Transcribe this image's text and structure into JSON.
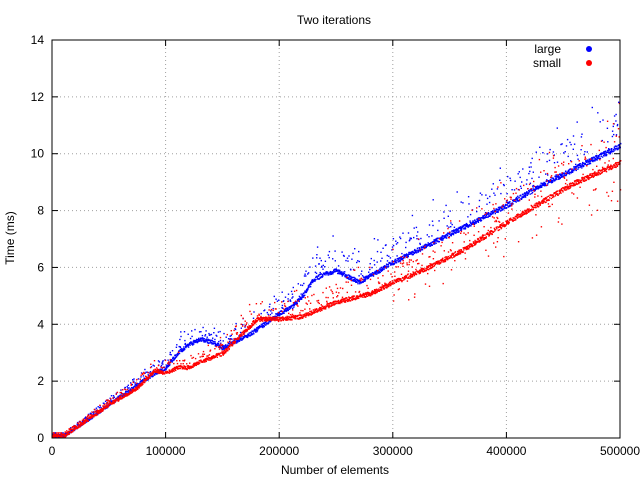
{
  "chart_data": {
    "type": "scatter",
    "title": "Two iterations",
    "xlabel": "Number of elements",
    "ylabel": "Time (ms)",
    "xlim": [
      0,
      500000
    ],
    "ylim": [
      0,
      14
    ],
    "xticks": [
      "0",
      "100000",
      "200000",
      "300000",
      "400000",
      "500000"
    ],
    "yticks": [
      "0",
      "2",
      "4",
      "6",
      "8",
      "10",
      "12",
      "14"
    ],
    "grid": true,
    "legend_position": "top-right",
    "series": [
      {
        "name": "large",
        "color": "#0000ff",
        "x": [
          10000,
          25000,
          50000,
          75000,
          90000,
          100000,
          110000,
          120000,
          130000,
          140000,
          150000,
          175000,
          200000,
          210000,
          220000,
          230000,
          240000,
          250000,
          260000,
          270000,
          300000,
          330000,
          360000,
          400000,
          430000,
          460000,
          500000
        ],
        "y": [
          0.1,
          0.5,
          1.2,
          1.9,
          2.3,
          2.5,
          3.0,
          3.3,
          3.5,
          3.4,
          3.2,
          3.7,
          4.4,
          4.6,
          5.0,
          5.6,
          5.8,
          5.9,
          5.7,
          5.5,
          6.2,
          6.8,
          7.4,
          8.2,
          8.9,
          9.5,
          10.3
        ]
      },
      {
        "name": "small",
        "color": "#ff0000",
        "x": [
          10000,
          25000,
          50000,
          75000,
          90000,
          100000,
          110000,
          120000,
          130000,
          150000,
          170000,
          180000,
          200000,
          220000,
          250000,
          280000,
          300000,
          330000,
          360000,
          400000,
          430000,
          460000,
          500000
        ],
        "y": [
          0.1,
          0.5,
          1.2,
          1.8,
          2.4,
          2.3,
          2.5,
          2.5,
          2.7,
          3.0,
          3.8,
          4.2,
          4.2,
          4.3,
          4.8,
          5.1,
          5.5,
          6.0,
          6.6,
          7.6,
          8.3,
          9.0,
          9.7
        ]
      }
    ]
  }
}
